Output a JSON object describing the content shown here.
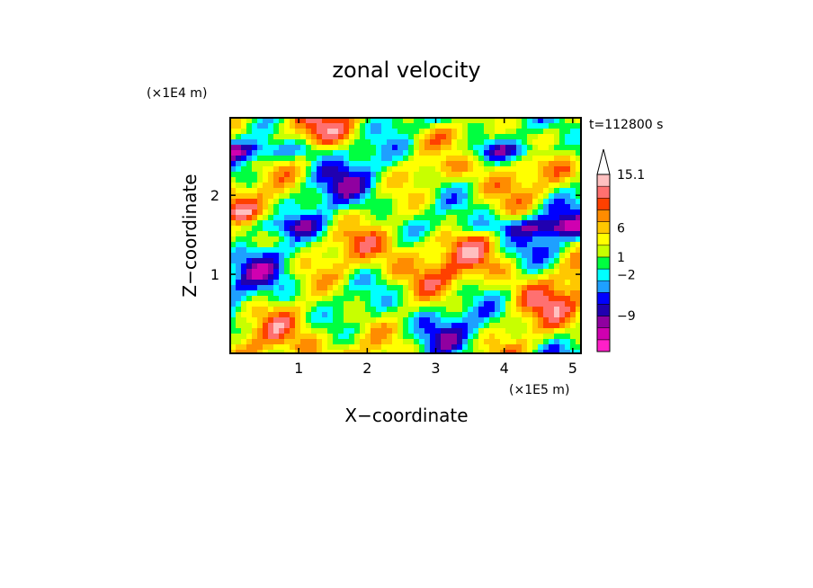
{
  "chart_data": {
    "type": "heatmap",
    "title": "zonal velocity",
    "xlabel": "X−coordinate",
    "ylabel": "Z−coordinate",
    "x_unit_label": "(×1E5 m)",
    "y_unit_label": "(×1E4 m)",
    "time_label": "t=112800 s",
    "xlim": [
      0,
      5.12
    ],
    "ylim": [
      0,
      2.98
    ],
    "x_ticks": [
      1,
      2,
      3,
      4,
      5
    ],
    "x_tick_labels": [
      "1",
      "2",
      "3",
      "4",
      "5"
    ],
    "y_ticks": [
      1,
      2
    ],
    "y_tick_labels": [
      "1",
      "2"
    ],
    "colorbar": {
      "levels": [
        -15.1,
        -12,
        -9,
        -6,
        -4,
        -2,
        -1,
        0,
        1,
        2,
        4,
        6,
        9,
        12,
        15.1
      ],
      "colors": [
        "#ff20c8",
        "#d000b0",
        "#9000a0",
        "#2000b0",
        "#0000ff",
        "#1ea0ff",
        "#00ffff",
        "#00ff40",
        "#c8ff00",
        "#ffff00",
        "#ffc800",
        "#ff8c00",
        "#ff4000",
        "#ff7070",
        "#ffc0c0"
      ],
      "labels": [
        {
          "value": 15.1,
          "text": "15.1"
        },
        {
          "value": 6,
          "text": "6"
        },
        {
          "value": 1,
          "text": "1"
        },
        {
          "value": -2,
          "text": "−2"
        },
        {
          "value": -9,
          "text": "−9"
        }
      ],
      "extend": "max-triangle"
    }
  }
}
